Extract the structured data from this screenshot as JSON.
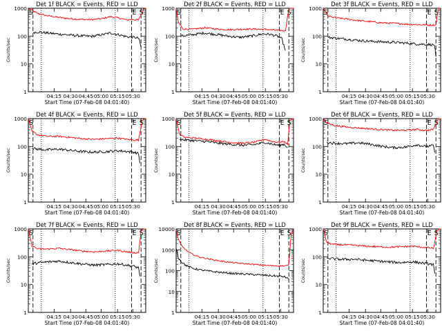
{
  "colors": {
    "events": "#000000",
    "lld": "#ff0000",
    "axes": "#000000"
  },
  "chart_data": [
    {
      "type": "line",
      "title": "Det 1f BLACK = Events, RED = LLD",
      "xlabel": "Start Time (07-Feb-08 04:01:40)",
      "ylabel": "Counts/sec",
      "yscale": "log",
      "ylim": [
        1,
        1000
      ],
      "x_ticks": [
        "04:15",
        "04:30",
        "04:45",
        "05:00",
        "05:15",
        "05:30"
      ],
      "y_ticks": [
        "1",
        "10",
        "100",
        "1000"
      ],
      "markers": [
        "S",
        "E",
        "S"
      ],
      "series": [
        {
          "name": "LLD",
          "color": "#ff0000",
          "x": [
            0,
            4,
            8,
            14,
            24,
            34,
            44,
            54,
            62,
            70,
            78,
            84,
            88,
            94,
            98,
            100
          ],
          "y": [
            1000,
            800,
            650,
            560,
            480,
            430,
            400,
            390,
            420,
            500,
            440,
            380,
            400,
            380,
            900,
            1100
          ]
        },
        {
          "name": "Events",
          "color": "#000000",
          "x": [
            4,
            8,
            14,
            24,
            34,
            44,
            54,
            62,
            70,
            78,
            84,
            88,
            94,
            96
          ],
          "y": [
            135,
            140,
            132,
            120,
            110,
            102,
            98,
            110,
            130,
            110,
            95,
            92,
            85,
            40
          ]
        }
      ]
    },
    {
      "type": "line",
      "title": "Det 2f BLACK = Events, RED = LLD",
      "xlabel": "Start Time (07-Feb-08 04:01:40)",
      "ylabel": "Counts/sec",
      "yscale": "log",
      "ylim": [
        1,
        1000
      ],
      "x_ticks": [
        "04:15",
        "04:30",
        "04:45",
        "05:00",
        "05:15",
        "05:30"
      ],
      "y_ticks": [
        "1",
        "10",
        "100",
        "1000"
      ],
      "markers": [
        "S",
        "E",
        "S"
      ],
      "series": [
        {
          "name": "LLD",
          "color": "#ff0000",
          "x": [
            0,
            2,
            6,
            14,
            24,
            34,
            44,
            54,
            64,
            74,
            80,
            86,
            90,
            93,
            96,
            100
          ],
          "y": [
            1000,
            300,
            180,
            175,
            200,
            180,
            170,
            175,
            180,
            175,
            170,
            160,
            160,
            150,
            1000,
            1200
          ]
        },
        {
          "name": "Events",
          "color": "#000000",
          "x": [
            4,
            8,
            14,
            24,
            34,
            44,
            54,
            64,
            74,
            80,
            86,
            90,
            93
          ],
          "y": [
            100,
            105,
            112,
            130,
            115,
            100,
            90,
            100,
            120,
            115,
            100,
            80,
            30
          ]
        }
      ]
    },
    {
      "type": "line",
      "title": "Det 3f BLACK = Events, RED = LLD",
      "xlabel": "Start Time (07-Feb-08 04:01:40)",
      "ylabel": "Counts/sec",
      "yscale": "log",
      "ylim": [
        1,
        1000
      ],
      "x_ticks": [
        "04:15",
        "04:30",
        "04:45",
        "05:00",
        "05:15",
        "05:30"
      ],
      "y_ticks": [
        "1",
        "10",
        "100",
        "1000"
      ],
      "markers": [
        "S",
        "E",
        "S"
      ],
      "series": [
        {
          "name": "LLD",
          "color": "#ff0000",
          "x": [
            0,
            4,
            10,
            20,
            30,
            40,
            50,
            60,
            70,
            80,
            90,
            96,
            98,
            100
          ],
          "y": [
            1000,
            520,
            460,
            410,
            360,
            330,
            300,
            290,
            270,
            260,
            250,
            250,
            900,
            1100
          ]
        },
        {
          "name": "Events",
          "color": "#000000",
          "x": [
            4,
            10,
            20,
            30,
            40,
            50,
            60,
            70,
            80,
            90,
            95,
            96
          ],
          "y": [
            90,
            85,
            78,
            70,
            65,
            62,
            60,
            56,
            52,
            50,
            48,
            18
          ]
        }
      ]
    },
    {
      "type": "line",
      "title": "Det 4f BLACK = Events, RED = LLD",
      "xlabel": "Start Time (07-Feb-08 04:01:40)",
      "ylabel": "Counts/sec",
      "yscale": "log",
      "ylim": [
        1,
        1000
      ],
      "x_ticks": [
        "04:15",
        "04:30",
        "04:45",
        "05:00",
        "05:15",
        "05:30"
      ],
      "y_ticks": [
        "1",
        "10",
        "100",
        "1000"
      ],
      "markers": [
        "S",
        "E",
        "S"
      ],
      "series": [
        {
          "name": "LLD",
          "color": "#ff0000",
          "x": [
            0,
            3,
            8,
            16,
            26,
            36,
            46,
            56,
            66,
            76,
            84,
            90,
            94,
            97,
            100
          ],
          "y": [
            1000,
            350,
            260,
            230,
            230,
            210,
            190,
            180,
            190,
            200,
            180,
            170,
            170,
            900,
            1100
          ]
        },
        {
          "name": "Events",
          "color": "#000000",
          "x": [
            3,
            8,
            16,
            26,
            36,
            46,
            56,
            66,
            76,
            84,
            90,
            94,
            95
          ],
          "y": [
            85,
            80,
            75,
            80,
            72,
            65,
            62,
            65,
            70,
            66,
            62,
            55,
            25
          ]
        }
      ]
    },
    {
      "type": "line",
      "title": "Det 5f BLACK = Events, RED = LLD",
      "xlabel": "Start Time (07-Feb-08 04:01:40)",
      "ylabel": "Counts/sec",
      "yscale": "log",
      "ylim": [
        1,
        1000
      ],
      "x_ticks": [
        "04:15",
        "04:30",
        "04:45",
        "05:00",
        "05:15",
        "05:30"
      ],
      "y_ticks": [
        "1",
        "10",
        "100",
        "1000"
      ],
      "markers": [
        "S",
        "E",
        "S"
      ],
      "series": [
        {
          "name": "LLD",
          "color": "#ff0000",
          "x": [
            0,
            3,
            8,
            16,
            26,
            36,
            46,
            56,
            66,
            76,
            82,
            88,
            92,
            95,
            97,
            100
          ],
          "y": [
            1000,
            260,
            210,
            200,
            180,
            160,
            140,
            130,
            140,
            180,
            150,
            140,
            150,
            120,
            900,
            1100
          ]
        },
        {
          "name": "Events",
          "color": "#000000",
          "x": [
            3,
            8,
            16,
            26,
            36,
            46,
            56,
            66,
            76,
            82,
            88,
            92,
            95
          ],
          "y": [
            180,
            170,
            160,
            150,
            130,
            120,
            110,
            115,
            140,
            120,
            110,
            120,
            90
          ]
        }
      ]
    },
    {
      "type": "line",
      "title": "Det 6f BLACK = Events, RED = LLD",
      "xlabel": "Start Time (07-Feb-08 04:01:40)",
      "ylabel": "Counts/sec",
      "yscale": "log",
      "ylim": [
        1,
        1000
      ],
      "x_ticks": [
        "04:15",
        "04:30",
        "04:45",
        "05:00",
        "05:15",
        "05:30"
      ],
      "y_ticks": [
        "1",
        "10",
        "100",
        "1000"
      ],
      "markers": [
        "S",
        "E",
        "S"
      ],
      "series": [
        {
          "name": "LLD",
          "color": "#ff0000",
          "x": [
            0,
            3,
            10,
            20,
            30,
            40,
            50,
            60,
            70,
            80,
            86,
            90,
            94,
            98,
            100
          ],
          "y": [
            1000,
            700,
            560,
            500,
            460,
            430,
            400,
            380,
            380,
            410,
            380,
            380,
            420,
            1000,
            1100
          ]
        },
        {
          "name": "Events",
          "color": "#000000",
          "x": [
            3,
            10,
            20,
            30,
            40,
            50,
            60,
            70,
            80,
            86,
            90,
            94,
            95
          ],
          "y": [
            140,
            130,
            125,
            135,
            120,
            100,
            90,
            95,
            115,
            100,
            100,
            110,
            60
          ]
        }
      ]
    },
    {
      "type": "line",
      "title": "Det 7f BLACK = Events, RED = LLD",
      "xlabel": "Start Time (07-Feb-08 04:01:40)",
      "ylabel": "Counts/sec",
      "yscale": "log",
      "ylim": [
        1,
        1000
      ],
      "x_ticks": [
        "04:15",
        "04:30",
        "04:45",
        "05:00",
        "05:15",
        "05:30"
      ],
      "y_ticks": [
        "1",
        "10",
        "100",
        "1000"
      ],
      "markers": [
        "S",
        "E",
        "S"
      ],
      "series": [
        {
          "name": "LLD",
          "color": "#ff0000",
          "x": [
            0,
            3,
            8,
            16,
            26,
            36,
            46,
            56,
            66,
            76,
            84,
            90,
            94,
            96,
            100
          ],
          "y": [
            1000,
            250,
            190,
            190,
            200,
            180,
            160,
            150,
            160,
            170,
            150,
            140,
            140,
            900,
            1100
          ]
        },
        {
          "name": "Events",
          "color": "#000000",
          "x": [
            3,
            8,
            16,
            26,
            36,
            46,
            56,
            66,
            76,
            84,
            90,
            94,
            95
          ],
          "y": [
            55,
            60,
            65,
            70,
            62,
            55,
            50,
            52,
            56,
            50,
            45,
            40,
            20
          ]
        }
      ]
    },
    {
      "type": "line",
      "title": "Det 8f BLACK = Events, RED = LLD",
      "xlabel": "Start Time (07-Feb-08 04:01:40)",
      "ylabel": "Counts/sec",
      "yscale": "log",
      "ylim": [
        1,
        10000
      ],
      "x_ticks": [
        "04:15",
        "04:30",
        "04:45",
        "05:00",
        "05:15",
        "05:30"
      ],
      "y_ticks": [
        "1",
        "10",
        "100",
        "1000",
        "10000"
      ],
      "markers": [
        "S",
        "E",
        "S"
      ],
      "series": [
        {
          "name": "LLD",
          "color": "#ff0000",
          "x": [
            0,
            2,
            5,
            9,
            14,
            20,
            28,
            36,
            46,
            56,
            66,
            76,
            86,
            92,
            96,
            98,
            100
          ],
          "y": [
            9000,
            3000,
            1500,
            900,
            600,
            450,
            360,
            300,
            250,
            220,
            200,
            180,
            170,
            170,
            180,
            6000,
            9000
          ]
        },
        {
          "name": "Events",
          "color": "#000000",
          "x": [
            0,
            2,
            5,
            9,
            14,
            20,
            28,
            36,
            46,
            56,
            66,
            76,
            86,
            92,
            96
          ],
          "y": [
            1200,
            400,
            250,
            170,
            130,
            110,
            95,
            85,
            75,
            70,
            65,
            60,
            55,
            52,
            40
          ]
        }
      ]
    },
    {
      "type": "line",
      "title": "Det 9f BLACK = Events, RED = LLD",
      "xlabel": "Start Time (07-Feb-08 04:01:40)",
      "ylabel": "Counts/sec",
      "yscale": "log",
      "ylim": [
        1,
        1000
      ],
      "x_ticks": [
        "04:15",
        "04:30",
        "04:45",
        "05:00",
        "05:15",
        "05:30"
      ],
      "y_ticks": [
        "1",
        "10",
        "100",
        "1000"
      ],
      "markers": [
        "S",
        "E",
        "S"
      ],
      "series": [
        {
          "name": "LLD",
          "color": "#ff0000",
          "x": [
            0,
            3,
            8,
            16,
            26,
            36,
            46,
            56,
            66,
            76,
            84,
            90,
            94,
            97,
            100
          ],
          "y": [
            1000,
            330,
            280,
            270,
            260,
            240,
            230,
            220,
            230,
            240,
            220,
            210,
            200,
            900,
            1100
          ]
        },
        {
          "name": "Events",
          "color": "#000000",
          "x": [
            3,
            8,
            16,
            26,
            36,
            46,
            56,
            66,
            76,
            84,
            90,
            94,
            95
          ],
          "y": [
            90,
            85,
            80,
            82,
            75,
            70,
            65,
            62,
            66,
            60,
            55,
            52,
            25
          ]
        }
      ]
    }
  ]
}
